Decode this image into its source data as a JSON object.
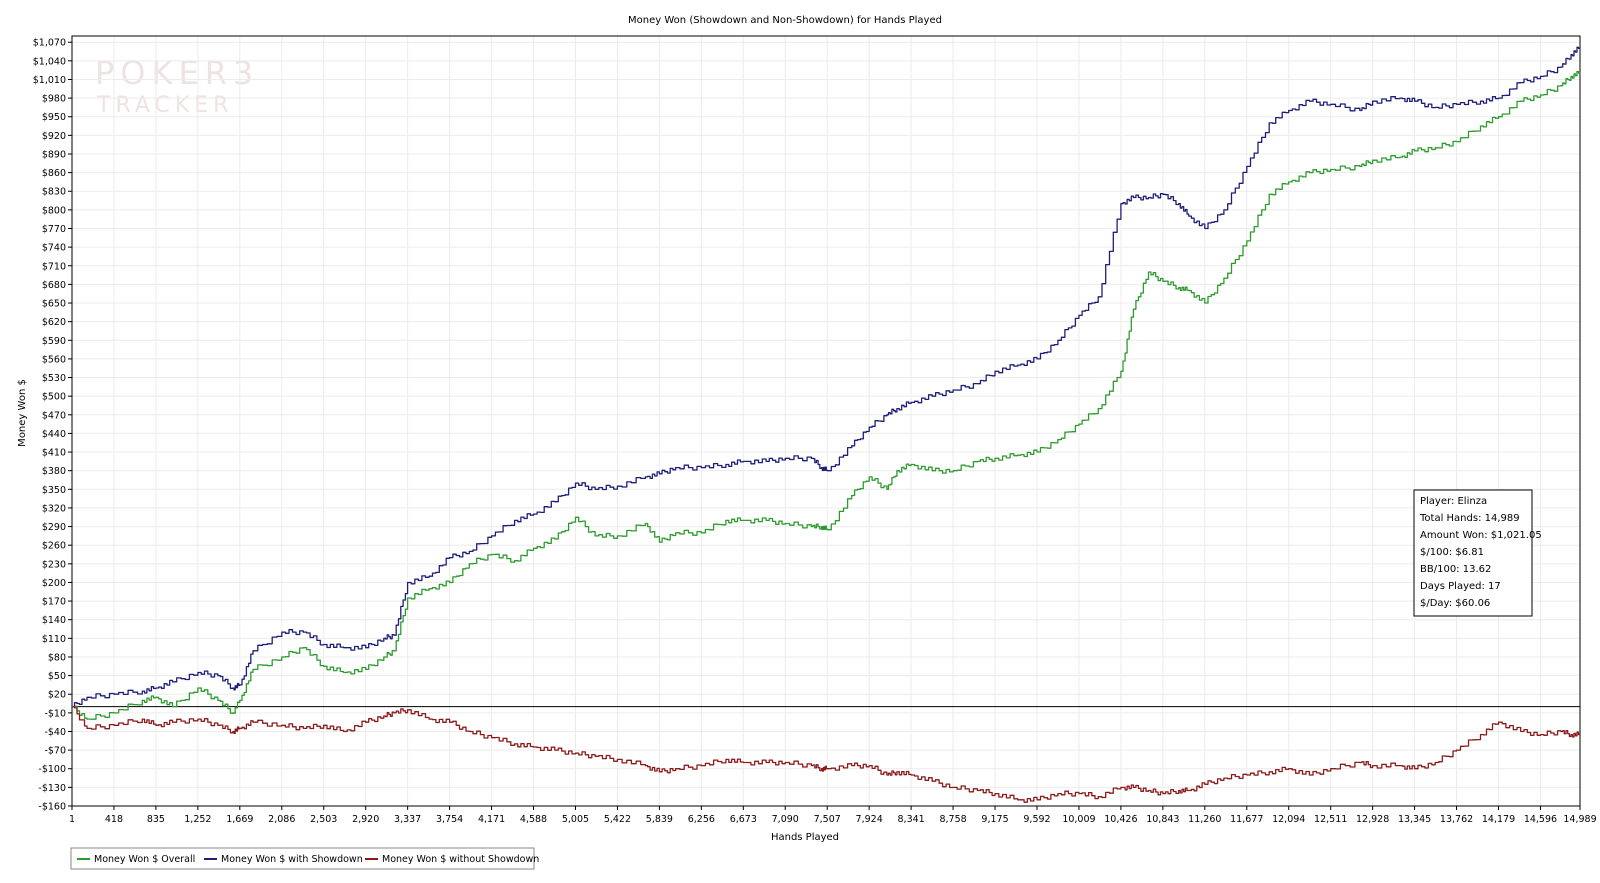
{
  "chart_data": {
    "type": "line",
    "title": "Money Won (Showdown and Non-Showdown) for Hands Played",
    "xlabel": "Hands Played",
    "ylabel": "Money Won $",
    "xlim": [
      1,
      14989
    ],
    "ylim": [
      -160,
      1080
    ],
    "x_ticks": [
      "1",
      "418",
      "835",
      "1,252",
      "1,669",
      "2,086",
      "2,503",
      "2,920",
      "3,337",
      "3,754",
      "4,171",
      "4,588",
      "5,005",
      "5,422",
      "5,839",
      "6,256",
      "6,673",
      "7,090",
      "7,507",
      "7,924",
      "8,341",
      "8,758",
      "9,175",
      "9,592",
      "10,009",
      "10,426",
      "10,843",
      "11,260",
      "11,677",
      "12,094",
      "12,511",
      "12,928",
      "13,345",
      "13,762",
      "14,179",
      "14,596",
      "14,989"
    ],
    "y_tick_step": 30,
    "y_tick_prefix": "$",
    "grid": true,
    "legend_position": "bottom-left",
    "watermark": "POKER TRACKER 3",
    "series": [
      {
        "name": "Money Won $ Overall",
        "color": "#2e9b2e",
        "x": [
          1,
          150,
          418,
          700,
          835,
          1000,
          1252,
          1450,
          1600,
          1669,
          1800,
          2086,
          2300,
          2503,
          2700,
          2920,
          3100,
          3200,
          3337,
          3550,
          3754,
          3950,
          4171,
          4400,
          4588,
          4800,
          5005,
          5200,
          5422,
          5700,
          5839,
          6000,
          6256,
          6500,
          6673,
          6900,
          7090,
          7350,
          7450,
          7507,
          7750,
          7924,
          8100,
          8200,
          8341,
          8550,
          8758,
          9000,
          9175,
          9400,
          9592,
          9800,
          10009,
          10200,
          10426,
          10550,
          10700,
          10843,
          11000,
          11100,
          11260,
          11450,
          11677,
          11900,
          12094,
          12300,
          12511,
          12800,
          12928,
          13200,
          13345,
          13550,
          13762,
          14000,
          14179,
          14400,
          14596,
          14800,
          14900,
          14989
        ],
        "y": [
          0,
          -20,
          -10,
          10,
          15,
          0,
          30,
          10,
          -10,
          10,
          60,
          80,
          95,
          65,
          55,
          60,
          80,
          90,
          175,
          190,
          200,
          230,
          245,
          235,
          255,
          270,
          305,
          275,
          275,
          295,
          265,
          280,
          280,
          300,
          300,
          300,
          295,
          290,
          290,
          285,
          340,
          370,
          350,
          380,
          390,
          380,
          380,
          395,
          400,
          405,
          410,
          430,
          455,
          480,
          540,
          640,
          700,
          685,
          675,
          670,
          650,
          690,
          750,
          825,
          845,
          860,
          865,
          870,
          880,
          885,
          895,
          900,
          910,
          935,
          950,
          975,
          985,
          1000,
          1015,
          1021.05
        ]
      },
      {
        "name": "Money Won $ with Showdown",
        "color": "#1e1e7a",
        "x": [
          1,
          150,
          418,
          700,
          835,
          1000,
          1252,
          1450,
          1600,
          1669,
          1800,
          2086,
          2300,
          2503,
          2700,
          2920,
          3100,
          3200,
          3337,
          3550,
          3754,
          3950,
          4171,
          4400,
          4588,
          4800,
          5005,
          5200,
          5422,
          5700,
          5839,
          6000,
          6256,
          6500,
          6673,
          6900,
          7090,
          7350,
          7450,
          7507,
          7750,
          7924,
          8100,
          8200,
          8341,
          8550,
          8758,
          9000,
          9175,
          9400,
          9592,
          9800,
          10009,
          10200,
          10426,
          10550,
          10700,
          10843,
          11000,
          11100,
          11260,
          11450,
          11677,
          11900,
          12094,
          12300,
          12511,
          12800,
          12928,
          13200,
          13345,
          13550,
          13762,
          14000,
          14179,
          14400,
          14596,
          14800,
          14900,
          14989
        ],
        "y": [
          0,
          15,
          20,
          25,
          30,
          40,
          55,
          50,
          30,
          35,
          90,
          120,
          120,
          100,
          95,
          95,
          110,
          115,
          200,
          210,
          240,
          250,
          275,
          300,
          310,
          330,
          360,
          350,
          355,
          370,
          375,
          385,
          385,
          390,
          395,
          395,
          400,
          400,
          385,
          380,
          420,
          450,
          470,
          480,
          490,
          500,
          510,
          520,
          540,
          550,
          560,
          590,
          630,
          660,
          810,
          820,
          820,
          825,
          810,
          790,
          770,
          800,
          870,
          940,
          960,
          975,
          970,
          960,
          975,
          980,
          975,
          965,
          970,
          975,
          980,
          1005,
          1015,
          1030,
          1050,
          1062
        ]
      },
      {
        "name": "Money Won $ without Showdown",
        "color": "#8b1a1a",
        "x": [
          1,
          150,
          418,
          700,
          835,
          1000,
          1252,
          1450,
          1600,
          1669,
          1800,
          2086,
          2300,
          2503,
          2700,
          2920,
          3100,
          3200,
          3337,
          3550,
          3754,
          3950,
          4171,
          4400,
          4588,
          4800,
          5005,
          5200,
          5422,
          5700,
          5839,
          6000,
          6256,
          6500,
          6673,
          6900,
          7090,
          7350,
          7450,
          7507,
          7750,
          7924,
          8100,
          8200,
          8341,
          8550,
          8758,
          9000,
          9175,
          9400,
          9592,
          9800,
          10009,
          10200,
          10426,
          10550,
          10700,
          10843,
          11000,
          11100,
          11260,
          11450,
          11677,
          11900,
          12094,
          12300,
          12511,
          12800,
          12928,
          13200,
          13345,
          13550,
          13762,
          14000,
          14179,
          14400,
          14596,
          14800,
          14900,
          14989
        ],
        "y": [
          0,
          -35,
          -30,
          -20,
          -30,
          -25,
          -20,
          -30,
          -40,
          -35,
          -25,
          -30,
          -35,
          -30,
          -40,
          -25,
          -15,
          -10,
          -5,
          -20,
          -25,
          -40,
          -50,
          -60,
          -65,
          -70,
          -75,
          -80,
          -85,
          -95,
          -105,
          -100,
          -95,
          -85,
          -90,
          -90,
          -90,
          -95,
          -100,
          -100,
          -95,
          -95,
          -110,
          -105,
          -110,
          -120,
          -130,
          -135,
          -140,
          -150,
          -150,
          -140,
          -140,
          -145,
          -130,
          -130,
          -135,
          -140,
          -135,
          -135,
          -125,
          -115,
          -110,
          -105,
          -100,
          -110,
          -100,
          -90,
          -95,
          -95,
          -100,
          -90,
          -70,
          -45,
          -25,
          -40,
          -45,
          -40,
          -45,
          -45
        ]
      }
    ]
  },
  "info_box": {
    "player": "Player: Elinza",
    "total_hands": "Total Hands: 14,989",
    "amount_won": "Amount Won: $1,021.05",
    "per_100": "$/100: $6.81",
    "bb_100": "BB/100: 13.62",
    "days_played": "Days Played: 17",
    "per_day": "$/Day: $60.06"
  }
}
